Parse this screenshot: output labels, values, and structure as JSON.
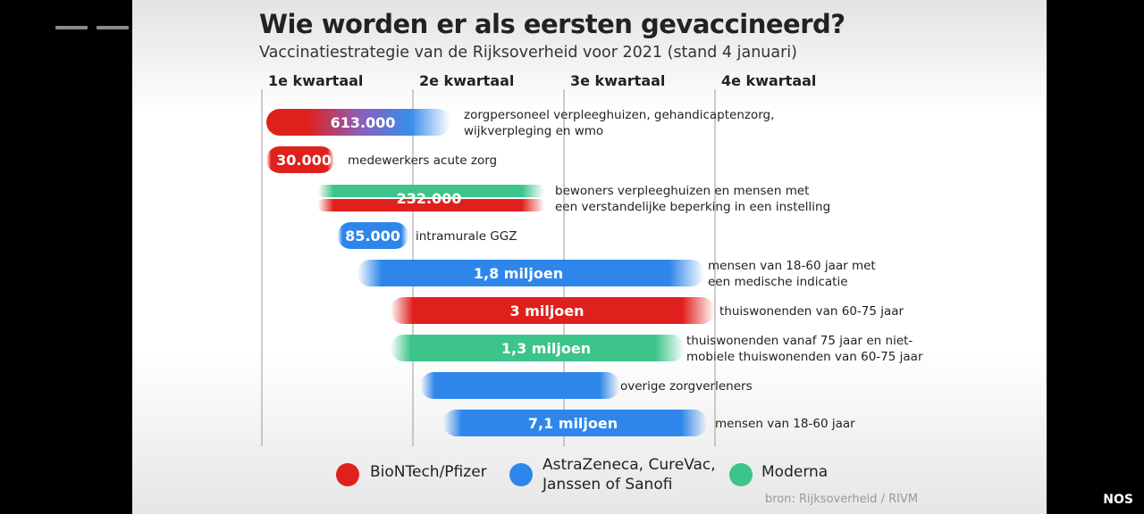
{
  "title": "Wie worden er als eersten gevaccineerd?",
  "subtitle": "Vaccinatiestrategie van de Rijksoverheid voor 2021 (stand 4 januari)",
  "brand": "NOS",
  "source": "bron: Rijksoverheid / RIVM",
  "colors": {
    "biontech": "#e0201c",
    "astrazeneca": "#2f86ea",
    "moderna": "#3cc48a",
    "vaccine_purple": "#8f5db7"
  },
  "legend": [
    {
      "key": "biontech",
      "label": "BioNTech/Pfizer"
    },
    {
      "key": "astrazeneca",
      "label": "AstraZeneca, CureVac,\nJanssen of Sanofi"
    },
    {
      "key": "moderna",
      "label": "Moderna"
    }
  ],
  "chart_data": {
    "type": "bar",
    "quarters": [
      "1e kwartaal",
      "2e kwartaal",
      "3e kwartaal",
      "4e kwartaal"
    ],
    "xlim": [
      1,
      5
    ],
    "groups": [
      {
        "value_label": "613.000",
        "start": 1.0,
        "end": 2.25,
        "vaccines": [
          "biontech",
          "astrazeneca"
        ],
        "group": "zorgpersoneel verpleeghuizen, gehandicaptenzorg, wijkverpleging en wmo"
      },
      {
        "value_label": "30.000",
        "start": 1.0,
        "end": 1.48,
        "vaccines": [
          "biontech"
        ],
        "group": "medewerkers acute zorg"
      },
      {
        "value_label": "232.000",
        "start": 1.37,
        "end": 2.87,
        "vaccines": [
          "moderna",
          "biontech"
        ],
        "group": "bewoners verpleeghuizen en mensen met een verstandelijke beperking in een instelling"
      },
      {
        "value_label": "85.000",
        "start": 1.5,
        "end": 1.97,
        "vaccines": [
          "astrazeneca"
        ],
        "group": "intramurale GGZ"
      },
      {
        "value_label": "1,8 miljoen",
        "start": 1.63,
        "end": 3.93,
        "vaccines": [
          "astrazeneca"
        ],
        "group": "mensen van 18-60 jaar met een medische indicatie"
      },
      {
        "value_label": "3 miljoen",
        "start": 1.85,
        "end": 4.0,
        "vaccines": [
          "biontech"
        ],
        "group": "thuiswonenden van 60-75 jaar"
      },
      {
        "value_label": "1,3 miljoen",
        "start": 1.85,
        "end": 3.8,
        "vaccines": [
          "moderna"
        ],
        "group": "thuiswonenden vanaf 75 jaar en niet-mobiele thuiswonenden van 60-75 jaar"
      },
      {
        "value_label": "",
        "start": 2.05,
        "end": 3.37,
        "vaccines": [
          "astrazeneca"
        ],
        "group": "overige zorgverleners"
      },
      {
        "value_label": "7,1 miljoen",
        "start": 2.2,
        "end": 3.95,
        "vaccines": [
          "astrazeneca"
        ],
        "group": "mensen van 18-60 jaar"
      }
    ]
  }
}
